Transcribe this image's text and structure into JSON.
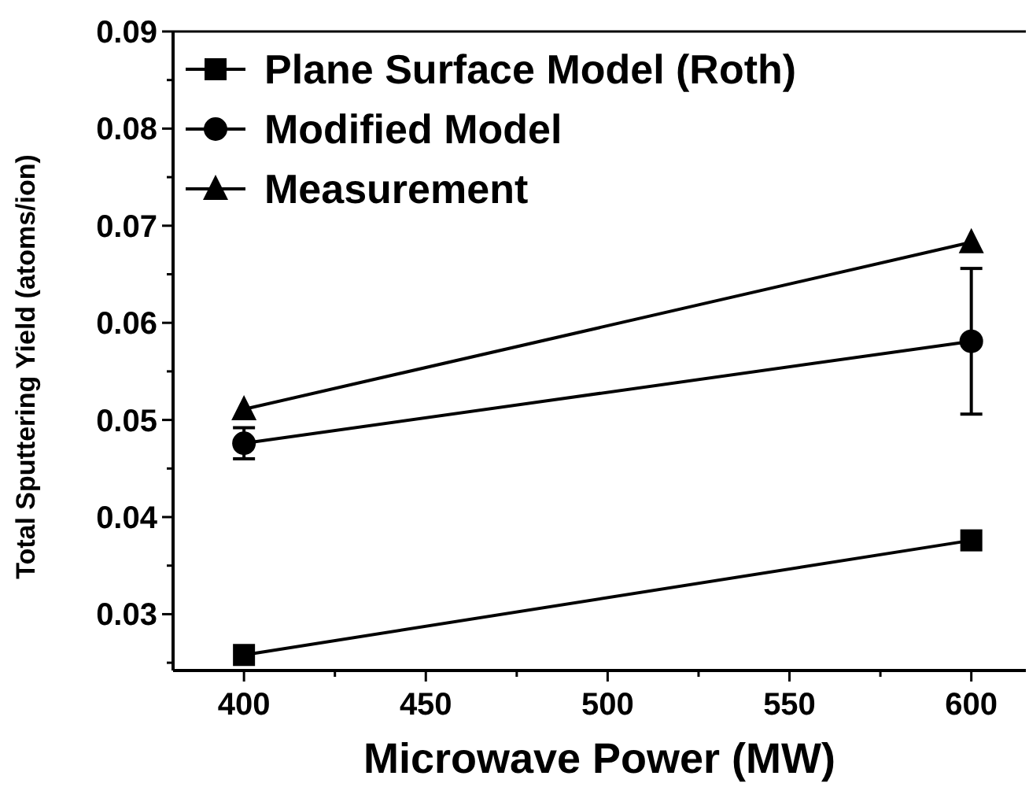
{
  "chart_data": {
    "type": "line",
    "xlabel": "Microwave Power (MW)",
    "ylabel": "Total Sputtering Yield (atoms/ion)",
    "x": [
      400,
      600
    ],
    "series": [
      {
        "name": "Plane Surface Model (Roth)",
        "color": "#000000",
        "marker": "square",
        "values": [
          0.0258,
          0.0376
        ]
      },
      {
        "name": "Modified Model",
        "color": "#000000",
        "marker": "circle",
        "values": [
          0.0476,
          0.0581
        ],
        "errors": [
          0.0016,
          0.0075
        ]
      },
      {
        "name": "Measurement",
        "color": "#000000",
        "marker": "triangle",
        "values": [
          0.0511,
          0.0683
        ]
      }
    ],
    "xlim": [
      380.5,
      615
    ],
    "ylim": [
      0.0242,
      0.09
    ],
    "xticks": [
      400,
      {
        "value": 425,
        "label": null
      },
      450,
      {
        "value": 475,
        "label": null
      },
      500,
      {
        "value": 525,
        "label": null
      },
      550,
      {
        "value": 575,
        "label": null
      },
      600
    ],
    "yticks": [
      {
        "value": 0.025,
        "label": null
      },
      0.03,
      {
        "value": 0.035,
        "label": null
      },
      0.04,
      {
        "value": 0.045,
        "label": null
      },
      0.05,
      {
        "value": 0.055,
        "label": null
      },
      0.06,
      {
        "value": 0.065,
        "label": null
      },
      0.07,
      {
        "value": 0.075,
        "label": null
      },
      0.08,
      {
        "value": 0.085,
        "label": null
      },
      0.09
    ],
    "grid": false,
    "legend": "top left",
    "line_style": "solid"
  }
}
